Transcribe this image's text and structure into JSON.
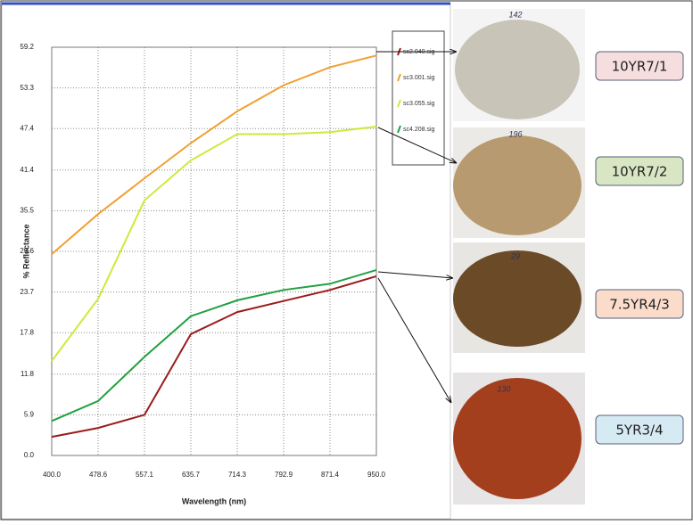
{
  "chart_data": {
    "type": "line",
    "y_label": "% Reflectance",
    "x_label": "Wavelength (nm)",
    "x": [
      400,
      478.6,
      557.1,
      635.7,
      714.3,
      792.9,
      871.4,
      950
    ],
    "xlim": [
      400,
      950
    ],
    "xticks": [
      {
        "value": 400,
        "label": "400.0"
      },
      478.6,
      557.1,
      635.7,
      714.3,
      792.9,
      871.4,
      {
        "value": 950,
        "label": "950.0"
      }
    ],
    "ylim": [
      0,
      59.2
    ],
    "yticks": [
      {
        "value": 0,
        "label": "0.0"
      },
      5.9,
      11.8,
      17.8,
      23.7,
      29.6,
      35.5,
      41.4,
      47.4,
      53.3,
      59.2
    ],
    "grid": true,
    "series": [
      {
        "name": "sc2.040.sig",
        "color": "#9b1b1b",
        "values": [
          2.7,
          4.0,
          5.9,
          17.6,
          20.8,
          22.4,
          24.0,
          26.0
        ]
      },
      {
        "name": "sc3.001.sig",
        "color": "#f0a030",
        "values": [
          29.2,
          35.0,
          40.2,
          45.3,
          49.9,
          53.7,
          56.3,
          58.0
        ]
      },
      {
        "name": "sc3.055.sig",
        "color": "#cdea3a",
        "values": [
          13.7,
          22.7,
          37.0,
          42.8,
          46.6,
          46.6,
          46.9,
          47.7
        ]
      },
      {
        "name": "sc4.208.sig",
        "color": "#22a040",
        "values": [
          5.0,
          7.9,
          14.3,
          20.2,
          22.5,
          24.0,
          24.9,
          26.9
        ]
      }
    ]
  },
  "samples": [
    {
      "photo_label": "142",
      "color_code": "10YR7/1"
    },
    {
      "photo_label": "196",
      "color_code": "10YR7/2"
    },
    {
      "photo_label": "29",
      "color_code": "7.5YR4/3"
    },
    {
      "photo_label": "130",
      "color_code": "5YR3/4"
    }
  ]
}
